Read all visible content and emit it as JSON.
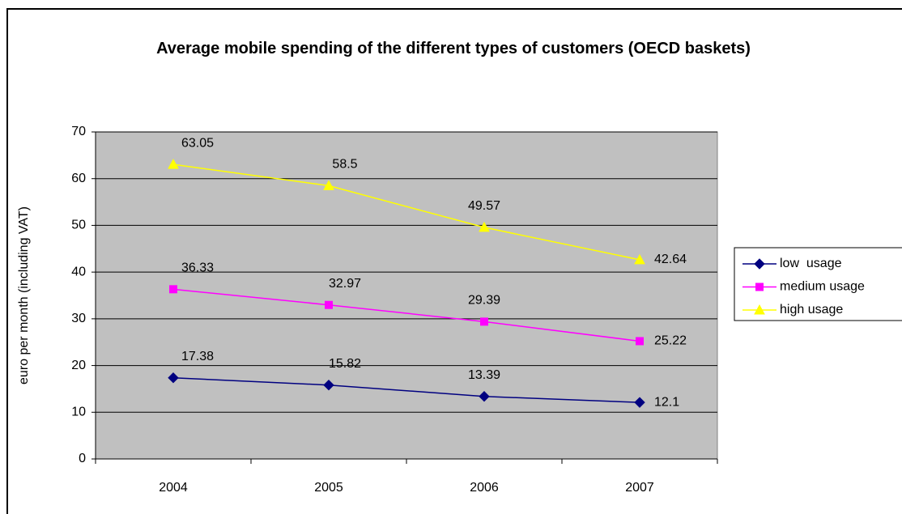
{
  "chart_data": {
    "type": "line",
    "title": "Average mobile spending of the different types of customers (OECD baskets)",
    "y_label": "euro per month (including VAT)",
    "categories": [
      "2004",
      "2005",
      "2006",
      "2007"
    ],
    "series": [
      {
        "name": "low  usage",
        "color": "#000080",
        "marker": "diamond",
        "values": [
          17.38,
          15.82,
          13.39,
          12.1
        ]
      },
      {
        "name": "medium usage",
        "color": "#ff00ff",
        "marker": "square",
        "values": [
          36.33,
          32.97,
          29.39,
          25.22
        ]
      },
      {
        "name": "high usage",
        "color": "#ffff00",
        "marker": "triangle",
        "values": [
          63.05,
          58.5,
          49.57,
          42.64
        ]
      }
    ],
    "ylim": [
      0,
      70
    ],
    "yticks": [
      0,
      10,
      20,
      30,
      40,
      50,
      60,
      70
    ],
    "grid": true,
    "legend": "right",
    "plot_background": "#c0c0c0"
  }
}
